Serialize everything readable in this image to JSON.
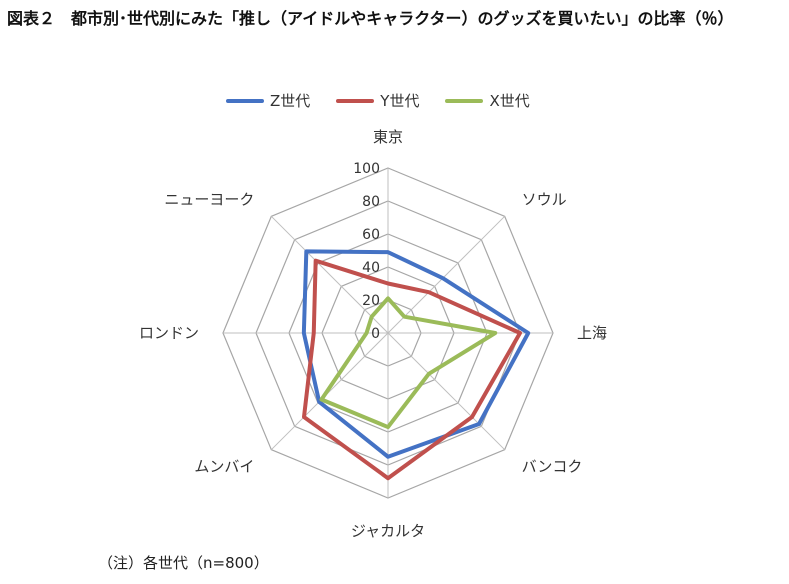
{
  "page": {
    "title": "図表２　都市別･世代別にみた「推し（アイドルやキャラクター）のグッズを買いたい」の比率（％）",
    "note": "（注）各世代（n=800）"
  },
  "legend": [
    {
      "name": "Z世代",
      "color": "#4472C4"
    },
    {
      "name": "Y世代",
      "color": "#C0504D"
    },
    {
      "name": "X世代",
      "color": "#9BBB59"
    }
  ],
  "chart_data": {
    "type": "radar",
    "categories": [
      "東京",
      "ソウル",
      "上海",
      "バンコク",
      "ジャカルタ",
      "ムンバイ",
      "ロンドン",
      "ニューヨーク"
    ],
    "rlim": [
      0,
      100
    ],
    "ticks": [
      0,
      20,
      40,
      60,
      80,
      100
    ],
    "tick_labels": [
      "0",
      "20",
      "40",
      "60",
      "80",
      "100"
    ],
    "series": [
      {
        "name": "Z世代",
        "color": "#4472C4",
        "values": [
          49,
          47,
          85,
          78,
          75,
          59,
          51,
          70
        ]
      },
      {
        "name": "Y世代",
        "color": "#C0504D",
        "values": [
          30,
          35,
          80,
          72,
          88,
          72,
          45,
          62
        ]
      },
      {
        "name": "X世代",
        "color": "#9BBB59",
        "values": [
          21,
          14,
          65,
          35,
          57,
          57,
          13,
          14
        ]
      }
    ],
    "grid": true,
    "legend_position": "top"
  }
}
